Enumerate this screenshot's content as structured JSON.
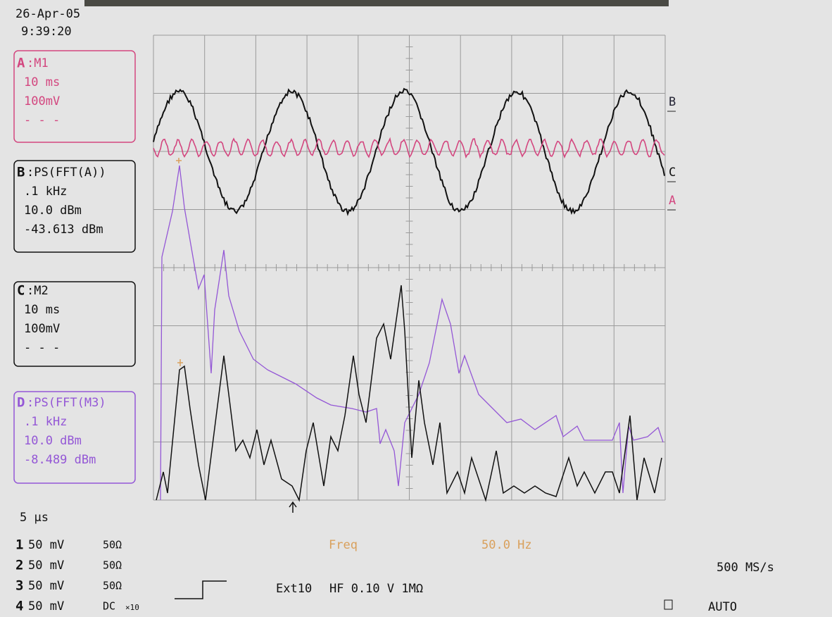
{
  "header": {
    "date": "26-Apr-05",
    "time": "9:39:20"
  },
  "traces": [
    {
      "id": "A",
      "title": ":M1",
      "lines": [
        "10 ms",
        "100mV",
        "- - -"
      ]
    },
    {
      "id": "B",
      "title": ":PS(FFT(A))",
      "lines": [
        ".1 kHz",
        "10.0 dBm",
        "-43.613 dBm"
      ]
    },
    {
      "id": "C",
      "title": ":M2",
      "lines": [
        "10 ms",
        "100mV",
        "- - -"
      ]
    },
    {
      "id": "D",
      "title": ":PS(FFT(M3)",
      "lines": [
        ".1 kHz",
        "10.0 dBm",
        "-8.489 dBm"
      ]
    }
  ],
  "trace_markers": [
    "B",
    "C",
    "A"
  ],
  "timebase": "5 μs",
  "channels": [
    {
      "num": "1",
      "scale": "50 mV",
      "coupling": "50Ω"
    },
    {
      "num": "2",
      "scale": "50 mV",
      "coupling": "50Ω"
    },
    {
      "num": "3",
      "scale": "50 mV",
      "coupling": "50Ω"
    },
    {
      "num": "4",
      "scale": "50 mV",
      "coupling": "DC",
      "probe": "×10"
    }
  ],
  "measurement": {
    "label": "Freq",
    "value": "50.0 Hz"
  },
  "trigger": {
    "source": "Ext10",
    "setting": "HF 0.10 V 1MΩ",
    "mode": "AUTO"
  },
  "sample_rate": "500 MS/s"
}
